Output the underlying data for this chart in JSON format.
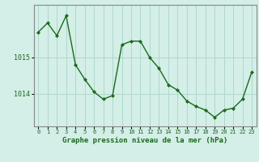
{
  "x": [
    0,
    1,
    2,
    3,
    4,
    5,
    6,
    7,
    8,
    9,
    10,
    11,
    12,
    13,
    14,
    15,
    16,
    17,
    18,
    19,
    20,
    21,
    22,
    23
  ],
  "y": [
    1015.7,
    1015.95,
    1015.6,
    1016.15,
    1014.8,
    1014.4,
    1014.05,
    1013.85,
    1013.95,
    1015.35,
    1015.45,
    1015.45,
    1015.0,
    1014.7,
    1014.25,
    1014.1,
    1013.8,
    1013.65,
    1013.55,
    1013.35,
    1013.55,
    1013.6,
    1013.85,
    1014.6
  ],
  "line_color": "#1a6b1a",
  "marker_color": "#1a6b1a",
  "bg_color": "#d4eee8",
  "grid_color": "#b0d8cc",
  "xlabel": "Graphe pression niveau de la mer (hPa)",
  "xlabel_color": "#1a6b1a",
  "tick_color": "#1a6b1a",
  "spine_color": "#888888",
  "ymin": 1013.1,
  "ymax": 1016.45,
  "yticks": [
    1014,
    1015
  ],
  "xmin": -0.5,
  "xmax": 23.5
}
